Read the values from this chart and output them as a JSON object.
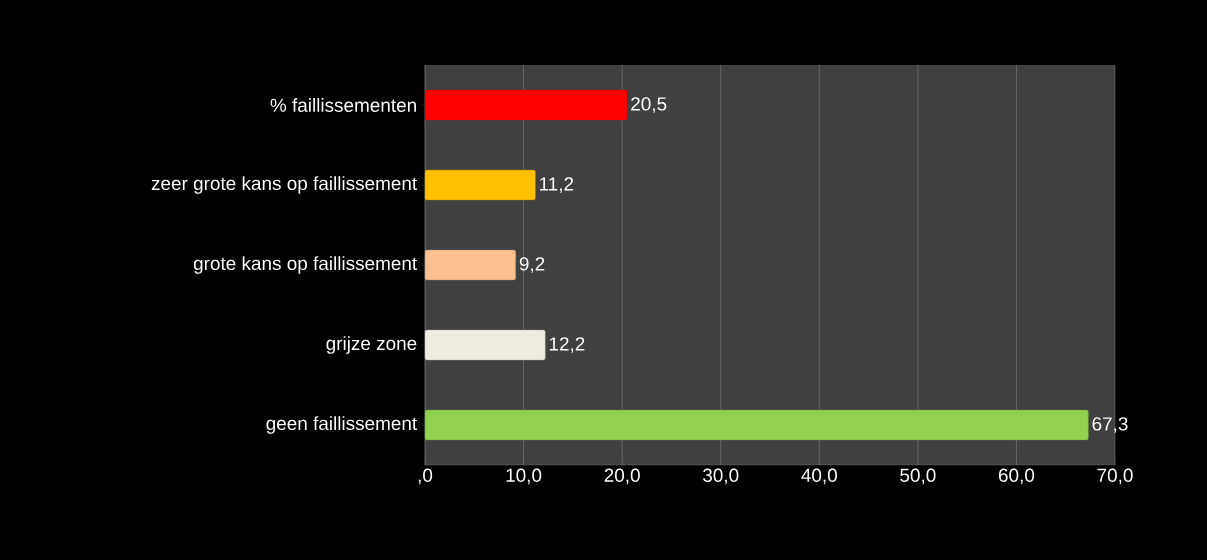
{
  "chart_data": {
    "type": "bar",
    "orientation": "horizontal",
    "categories": [
      "% faillissementen",
      "zeer grote kans op faillissement",
      "grote kans op faillissement",
      "grijze zone",
      "geen faillissement"
    ],
    "values": [
      20.5,
      11.2,
      9.2,
      12.2,
      67.3
    ],
    "colors": [
      "#ff0000",
      "#ffc000",
      "#fac090",
      "#eeece1",
      "#92d050"
    ],
    "value_labels": [
      "20,5",
      "11,2",
      "9,2",
      "12,2",
      "67,3"
    ],
    "xlim": [
      0,
      70
    ],
    "xticks": [
      {
        "value": 0,
        "label": ",0"
      },
      {
        "value": 10,
        "label": "10,0"
      },
      {
        "value": 20,
        "label": "20,0"
      },
      {
        "value": 30,
        "label": "30,0"
      },
      {
        "value": 40,
        "label": "40,0"
      },
      {
        "value": 50,
        "label": "50,0"
      },
      {
        "value": 60,
        "label": "60,0"
      },
      {
        "value": 70,
        "label": "70,0"
      }
    ],
    "grid": "x"
  }
}
